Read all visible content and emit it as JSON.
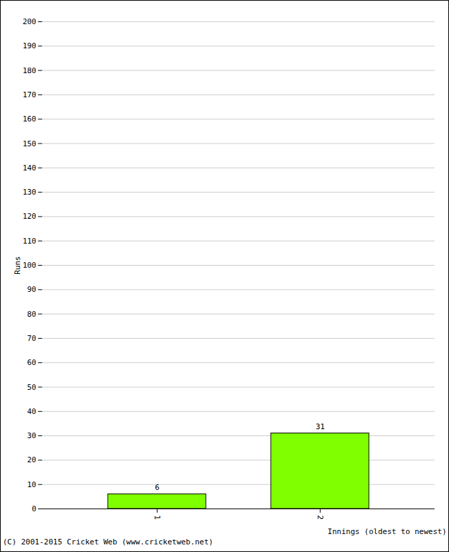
{
  "chart_data": {
    "type": "bar",
    "categories": [
      "1",
      "2"
    ],
    "values": [
      6,
      31
    ],
    "color": "#80ff00",
    "x_label": "Innings (oldest to newest)",
    "y_label": "Runs",
    "ylim": [
      0,
      200
    ],
    "yticks": [
      0,
      10,
      20,
      30,
      40,
      50,
      60,
      70,
      80,
      90,
      100,
      110,
      120,
      130,
      140,
      150,
      160,
      170,
      180,
      190,
      200
    ],
    "grid": true,
    "data_labels": true,
    "caption": "(C) 2001-2015 Cricket Web (www.cricketweb.net)"
  }
}
